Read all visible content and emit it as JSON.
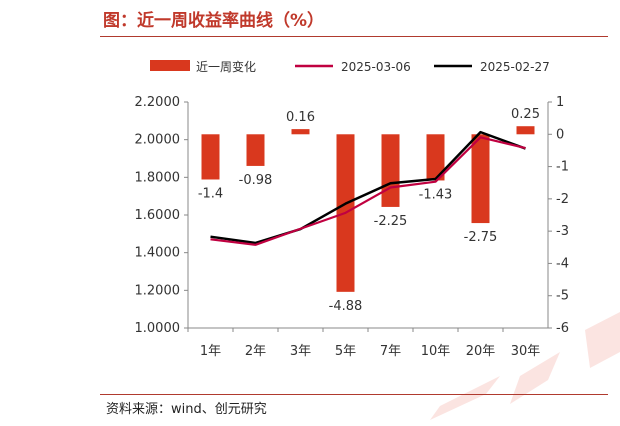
{
  "header": {
    "title": "图：近一周收益率曲线（%）"
  },
  "footer": {
    "source": "资料来源：wind、创元研究"
  },
  "chart_data": {
    "type": "bar+line",
    "title": "图：近一周收益率曲线（%）",
    "categories": [
      "1年",
      "2年",
      "3年",
      "5年",
      "7年",
      "10年",
      "20年",
      "30年"
    ],
    "series": [
      {
        "name": "近一周变化",
        "type": "bar",
        "axis": "right",
        "color": "#d9381e",
        "values": [
          -1.4,
          -0.98,
          0.16,
          -4.88,
          -2.25,
          -1.43,
          -2.75,
          0.25
        ]
      },
      {
        "name": "2025-03-06",
        "type": "line",
        "axis": "left",
        "color": "#c00040",
        "values": [
          1.4708,
          1.4418,
          1.5271,
          1.6114,
          1.7461,
          1.7768,
          2.0125,
          1.9553
        ]
      },
      {
        "name": "2025-02-27",
        "type": "line",
        "axis": "left",
        "color": "#000000",
        "values": [
          1.4848,
          1.4516,
          1.5255,
          1.6602,
          1.7686,
          1.7911,
          2.04,
          1.9528
        ]
      }
    ],
    "left_axis": {
      "ylim": [
        1.0,
        2.2
      ],
      "ticks": [
        "1.0000",
        "1.2000",
        "1.4000",
        "1.6000",
        "1.8000",
        "2.0000",
        "2.2000"
      ]
    },
    "right_axis": {
      "ylim": [
        -6,
        1
      ],
      "ticks": [
        "-6",
        "-5",
        "-4",
        "-3",
        "-2",
        "-1",
        "0",
        "1"
      ]
    },
    "legend_position": "top",
    "grid": false,
    "bar_labels": [
      "-1.4",
      "-0.98",
      "0.16",
      "-4.88",
      "-2.25",
      "-1.43",
      "-2.75",
      "0.25"
    ]
  }
}
